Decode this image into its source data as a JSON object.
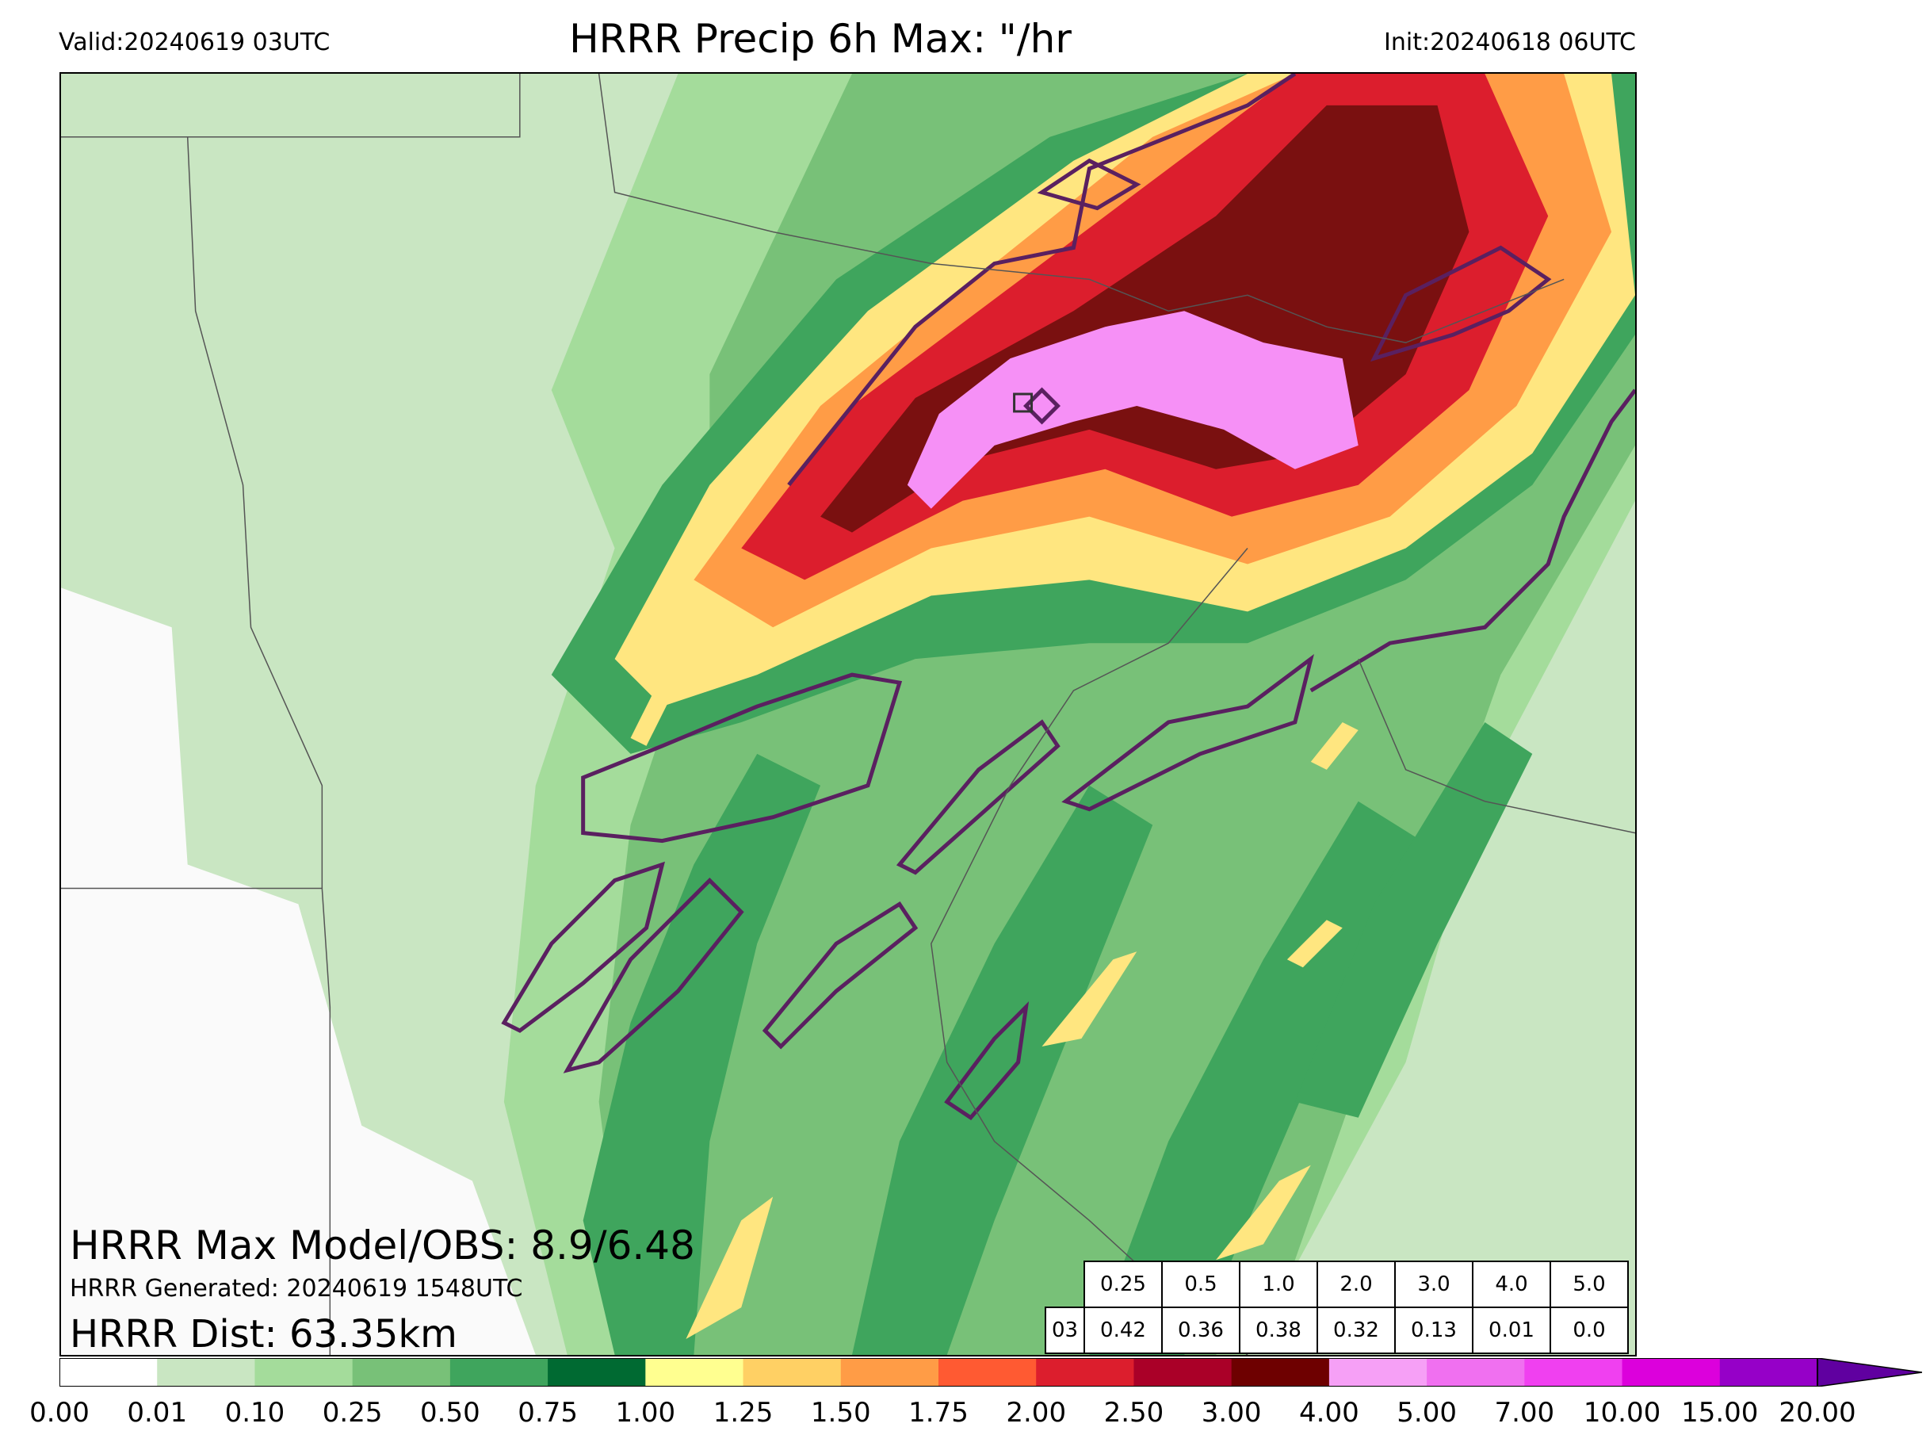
{
  "header": {
    "valid": "Valid:20240619 03UTC",
    "title": "HRRR Precip 6h Max: \"/hr",
    "init": "Init:20240618 06UTC"
  },
  "stats": {
    "model_obs": "HRRR Max Model/OBS: 8.9/6.48",
    "generated": "HRRR Generated: 20240619 1548UTC",
    "dist": "HRRR Dist: 63.35km"
  },
  "threshold_table": {
    "thresholds": [
      "0.25",
      "0.5",
      "1.0",
      "2.0",
      "3.0",
      "4.0",
      "5.0"
    ],
    "row_label": "03",
    "scores": [
      "0.42",
      "0.36",
      "0.38",
      "0.32",
      "0.13",
      "0.01",
      "0.0"
    ]
  },
  "colorbar": {
    "ticks": [
      "0.00",
      "0.01",
      "0.10",
      "0.25",
      "0.50",
      "0.75",
      "1.00",
      "1.25",
      "1.50",
      "1.75",
      "2.00",
      "2.50",
      "3.00",
      "4.00",
      "5.00",
      "7.00",
      "10.00",
      "15.00",
      "20.00"
    ],
    "colors": [
      "#ffffff",
      "#c9e6c2",
      "#a4dc9b",
      "#78c178",
      "#3fa55d",
      "#006a32",
      "#ffff90",
      "#ffd064",
      "#ff9c46",
      "#ff5a32",
      "#dc1e2d",
      "#aa0028",
      "#6e0000",
      "#f6a0f6",
      "#f070f0",
      "#f040f0",
      "#dc00dc",
      "#9600c8",
      "#6000a0"
    ],
    "extend_color": "#6000a0"
  },
  "map": {
    "fill_colors": {
      "light_green": "#c9e6c2",
      "green1": "#a4dc9b",
      "green2": "#78c178",
      "green3": "#3fa55d",
      "dark_green": "#006a32",
      "yellow": "#ffe680",
      "orange": "#ff9c46",
      "red": "#dc1e2d",
      "dark_red": "#7a1010",
      "pink": "#f690f6",
      "obs_contour": "#5a2060",
      "boundary": "#555555"
    }
  }
}
